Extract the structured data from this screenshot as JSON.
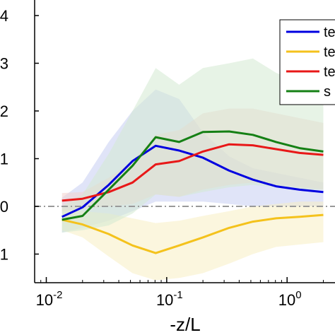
{
  "chart_data": {
    "type": "line",
    "title": "",
    "xlabel": "-z/L",
    "ylabel": "",
    "x_scale": "log",
    "xlim": [
      0.008,
      2.5
    ],
    "ylim": [
      -1.6,
      4.0
    ],
    "grid": false,
    "legend_position": "top-right",
    "x_ticks": [
      {
        "value": 0.01,
        "base": "10",
        "exp": "-2"
      },
      {
        "value": 0.1,
        "base": "10",
        "exp": "-1"
      },
      {
        "value": 1,
        "base": "10",
        "exp": "0"
      }
    ],
    "y_ticks": [
      {
        "value": 4,
        "label": "4"
      },
      {
        "value": 3,
        "label": "3"
      },
      {
        "value": 2,
        "label": "2"
      },
      {
        "value": 1,
        "label": "1"
      },
      {
        "value": 0,
        "label": "0"
      },
      {
        "value": -1,
        "label": "1"
      }
    ],
    "reference_line": {
      "y": 0,
      "color": "#999999"
    },
    "series": [
      {
        "name": "te",
        "color": "#0000e0",
        "fill": "#c7cdf2",
        "x": [
          0.0135,
          0.02,
          0.033,
          0.052,
          0.081,
          0.127,
          0.2,
          0.33,
          0.52,
          0.81,
          1.27,
          2.0
        ],
        "y": [
          -0.22,
          -0.02,
          0.45,
          0.95,
          1.27,
          1.17,
          1.02,
          0.75,
          0.56,
          0.42,
          0.35,
          0.3
        ],
        "upper": [
          0.18,
          0.5,
          1.35,
          2.0,
          2.45,
          2.25,
          1.55,
          1.05,
          0.8,
          0.7,
          0.6,
          0.5
        ],
        "lower": [
          -0.55,
          -0.45,
          -0.3,
          -0.1,
          0.1,
          0.1,
          0.1,
          0.05,
          0.0,
          0.0,
          0.0,
          0.0
        ]
      },
      {
        "name": "te",
        "color": "#f4c21c",
        "fill": "#f7eec3",
        "x": [
          0.0135,
          0.02,
          0.033,
          0.052,
          0.081,
          0.127,
          0.2,
          0.33,
          0.52,
          0.81,
          1.27,
          2.0
        ],
        "y": [
          -0.28,
          -0.38,
          -0.58,
          -0.82,
          -0.98,
          -0.82,
          -0.65,
          -0.45,
          -0.32,
          -0.25,
          -0.22,
          -0.18
        ],
        "upper": [
          -0.05,
          -0.1,
          -0.15,
          -0.25,
          -0.35,
          -0.3,
          -0.2,
          -0.1,
          0.0,
          0.05,
          0.1,
          0.1
        ],
        "lower": [
          -0.5,
          -0.65,
          -1.05,
          -1.4,
          -1.55,
          -1.5,
          -1.4,
          -1.2,
          -1.0,
          -0.85,
          -0.8,
          -0.75
        ]
      },
      {
        "name": "te",
        "color": "#e81818",
        "fill": "#f3d2cd",
        "x": [
          0.0135,
          0.02,
          0.033,
          0.052,
          0.081,
          0.127,
          0.2,
          0.33,
          0.52,
          0.81,
          1.27,
          2.0
        ],
        "y": [
          0.12,
          0.16,
          0.3,
          0.5,
          0.88,
          0.95,
          1.15,
          1.3,
          1.28,
          1.2,
          1.12,
          1.08
        ],
        "upper": [
          0.28,
          0.3,
          0.6,
          0.95,
          1.5,
          1.6,
          1.95,
          2.05,
          2.05,
          1.95,
          1.85,
          1.75
        ],
        "lower": [
          -0.1,
          -0.05,
          0.0,
          0.05,
          0.25,
          0.2,
          0.35,
          0.45,
          0.5,
          0.45,
          0.4,
          0.35
        ]
      },
      {
        "name": "s",
        "color": "#158015",
        "fill": "#d3ead2",
        "x": [
          0.0135,
          0.02,
          0.033,
          0.052,
          0.081,
          0.127,
          0.2,
          0.33,
          0.52,
          0.81,
          1.27,
          2.0
        ],
        "y": [
          -0.28,
          -0.2,
          0.35,
          0.85,
          1.45,
          1.35,
          1.56,
          1.57,
          1.5,
          1.35,
          1.22,
          1.15
        ],
        "upper": [
          0.0,
          0.25,
          1.1,
          2.0,
          2.9,
          2.55,
          2.9,
          3.0,
          3.1,
          2.8,
          2.6,
          2.45
        ],
        "lower": [
          -0.55,
          -0.5,
          -0.4,
          -0.15,
          0.25,
          0.2,
          0.3,
          0.4,
          0.45,
          0.4,
          0.35,
          0.35
        ]
      }
    ]
  }
}
